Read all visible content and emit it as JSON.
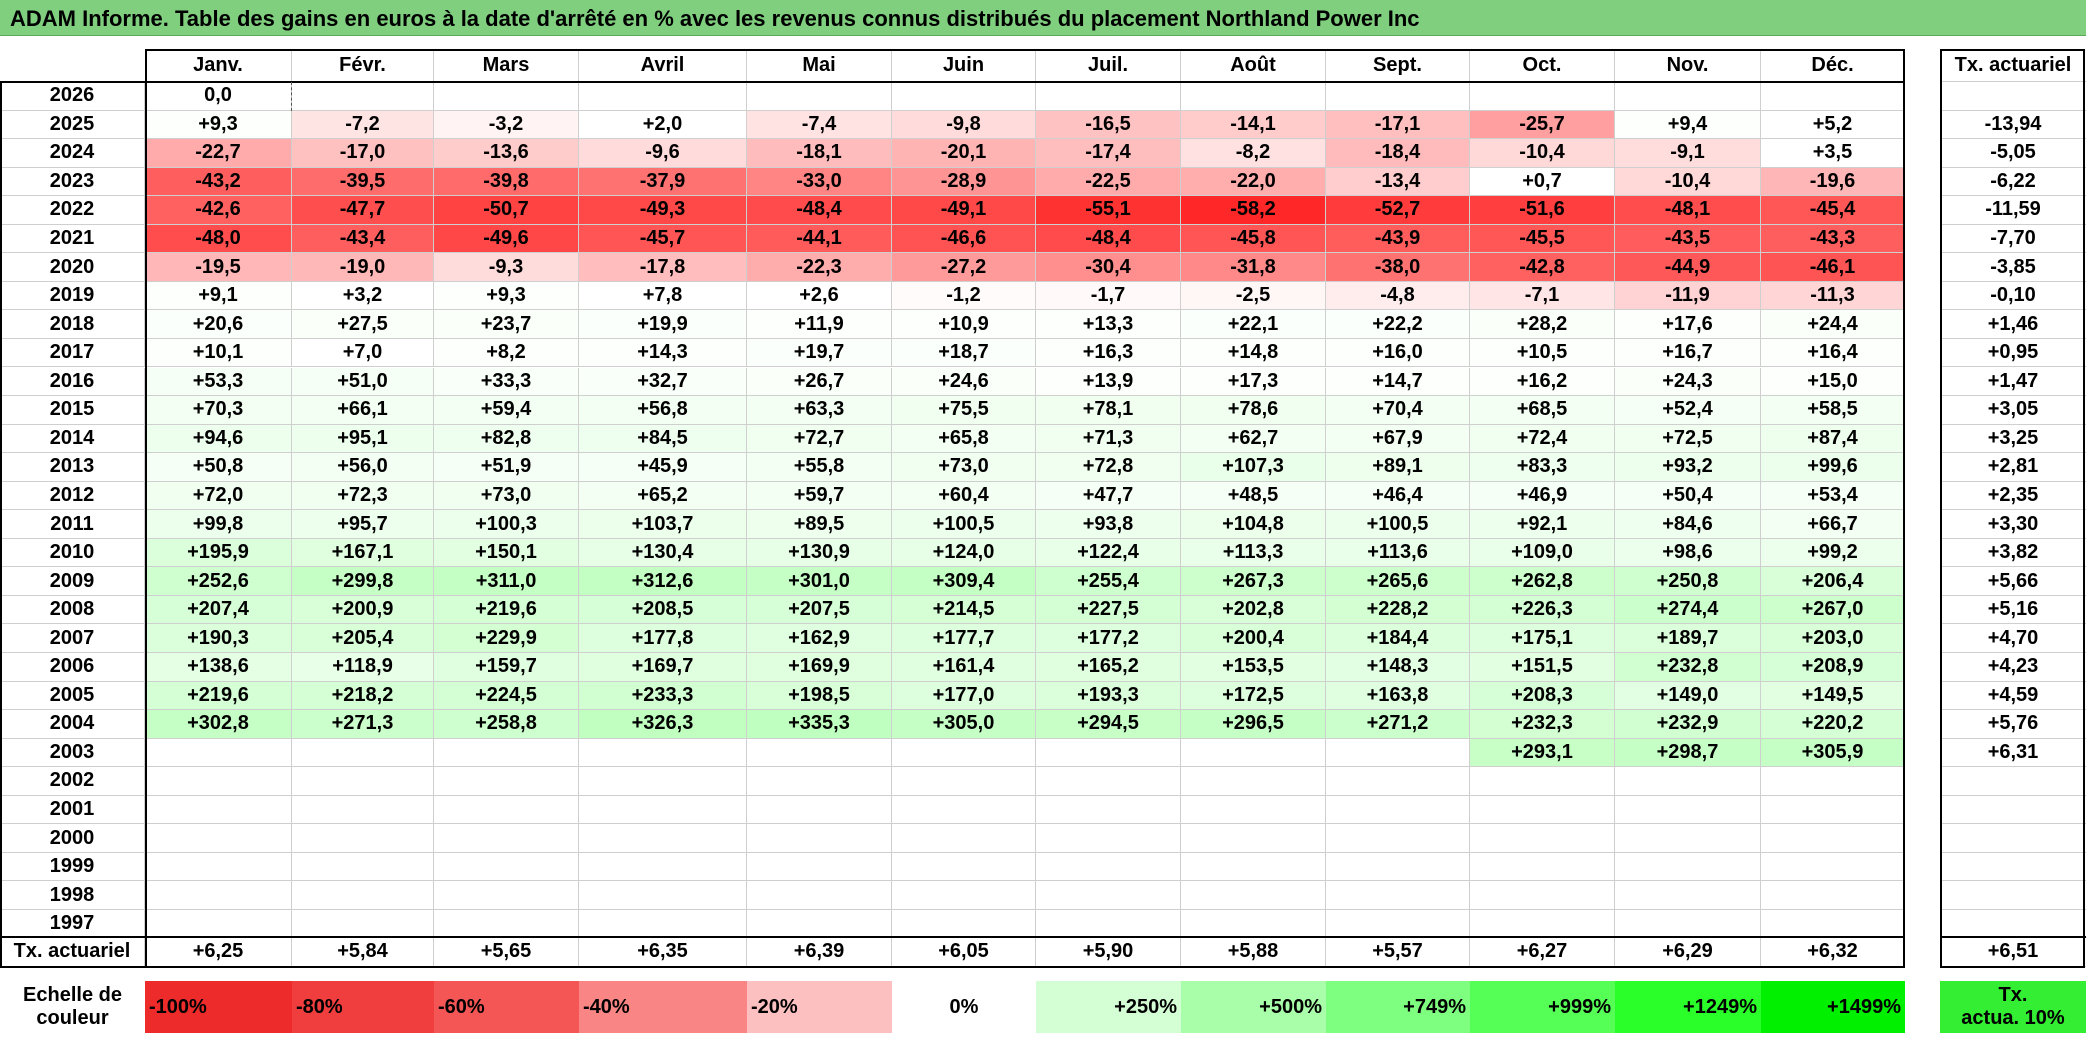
{
  "title": "ADAM Informe. Table des gains en euros à la date d'arrêté en % avec les revenus connus distribués du placement Northland Power Inc",
  "months": [
    "Janv.",
    "Févr.",
    "Mars",
    "Avril",
    "Mai",
    "Juin",
    "Juil.",
    "Août",
    "Sept.",
    "Oct.",
    "Nov.",
    "Déc."
  ],
  "tx_header": "Tx. actuariel",
  "rows": [
    {
      "year": "2026",
      "values": [
        "0,0",
        "",
        "",
        "",
        "",
        "",
        "",
        "",
        "",
        "",
        "",
        ""
      ],
      "tx": ""
    },
    {
      "year": "2025",
      "values": [
        "+9,3",
        "-7,2",
        "-3,2",
        "+2,0",
        "-7,4",
        "-9,8",
        "-16,5",
        "-14,1",
        "-17,1",
        "-25,7",
        "+9,4",
        "+5,2"
      ],
      "tx": "-13,94"
    },
    {
      "year": "2024",
      "values": [
        "-22,7",
        "-17,0",
        "-13,6",
        "-9,6",
        "-18,1",
        "-20,1",
        "-17,4",
        "-8,2",
        "-18,4",
        "-10,4",
        "-9,1",
        "+3,5"
      ],
      "tx": "-5,05"
    },
    {
      "year": "2023",
      "values": [
        "-43,2",
        "-39,5",
        "-39,8",
        "-37,9",
        "-33,0",
        "-28,9",
        "-22,5",
        "-22,0",
        "-13,4",
        "+0,7",
        "-10,4",
        "-19,6"
      ],
      "tx": "-6,22"
    },
    {
      "year": "2022",
      "values": [
        "-42,6",
        "-47,7",
        "-50,7",
        "-49,3",
        "-48,4",
        "-49,1",
        "-55,1",
        "-58,2",
        "-52,7",
        "-51,6",
        "-48,1",
        "-45,4"
      ],
      "tx": "-11,59"
    },
    {
      "year": "2021",
      "values": [
        "-48,0",
        "-43,4",
        "-49,6",
        "-45,7",
        "-44,1",
        "-46,6",
        "-48,4",
        "-45,8",
        "-43,9",
        "-45,5",
        "-43,5",
        "-43,3"
      ],
      "tx": "-7,70"
    },
    {
      "year": "2020",
      "values": [
        "-19,5",
        "-19,0",
        "-9,3",
        "-17,8",
        "-22,3",
        "-27,2",
        "-30,4",
        "-31,8",
        "-38,0",
        "-42,8",
        "-44,9",
        "-46,1"
      ],
      "tx": "-3,85"
    },
    {
      "year": "2019",
      "values": [
        "+9,1",
        "+3,2",
        "+9,3",
        "+7,8",
        "+2,6",
        "-1,2",
        "-1,7",
        "-2,5",
        "-4,8",
        "-7,1",
        "-11,9",
        "-11,3"
      ],
      "tx": "-0,10"
    },
    {
      "year": "2018",
      "values": [
        "+20,6",
        "+27,5",
        "+23,7",
        "+19,9",
        "+11,9",
        "+10,9",
        "+13,3",
        "+22,1",
        "+22,2",
        "+28,2",
        "+17,6",
        "+24,4"
      ],
      "tx": "+1,46"
    },
    {
      "year": "2017",
      "values": [
        "+10,1",
        "+7,0",
        "+8,2",
        "+14,3",
        "+19,7",
        "+18,7",
        "+16,3",
        "+14,8",
        "+16,0",
        "+10,5",
        "+16,7",
        "+16,4"
      ],
      "tx": "+0,95"
    },
    {
      "year": "2016",
      "values": [
        "+53,3",
        "+51,0",
        "+33,3",
        "+32,7",
        "+26,7",
        "+24,6",
        "+13,9",
        "+17,3",
        "+14,7",
        "+16,2",
        "+24,3",
        "+15,0"
      ],
      "tx": "+1,47"
    },
    {
      "year": "2015",
      "values": [
        "+70,3",
        "+66,1",
        "+59,4",
        "+56,8",
        "+63,3",
        "+75,5",
        "+78,1",
        "+78,6",
        "+70,4",
        "+68,5",
        "+52,4",
        "+58,5"
      ],
      "tx": "+3,05"
    },
    {
      "year": "2014",
      "values": [
        "+94,6",
        "+95,1",
        "+82,8",
        "+84,5",
        "+72,7",
        "+65,8",
        "+71,3",
        "+62,7",
        "+67,9",
        "+72,4",
        "+72,5",
        "+87,4"
      ],
      "tx": "+3,25"
    },
    {
      "year": "2013",
      "values": [
        "+50,8",
        "+56,0",
        "+51,9",
        "+45,9",
        "+55,8",
        "+73,0",
        "+72,8",
        "+107,3",
        "+89,1",
        "+83,3",
        "+93,2",
        "+99,6"
      ],
      "tx": "+2,81"
    },
    {
      "year": "2012",
      "values": [
        "+72,0",
        "+72,3",
        "+73,0",
        "+65,2",
        "+59,7",
        "+60,4",
        "+47,7",
        "+48,5",
        "+46,4",
        "+46,9",
        "+50,4",
        "+53,4"
      ],
      "tx": "+2,35"
    },
    {
      "year": "2011",
      "values": [
        "+99,8",
        "+95,7",
        "+100,3",
        "+103,7",
        "+89,5",
        "+100,5",
        "+93,8",
        "+104,8",
        "+100,5",
        "+92,1",
        "+84,6",
        "+66,7"
      ],
      "tx": "+3,30"
    },
    {
      "year": "2010",
      "values": [
        "+195,9",
        "+167,1",
        "+150,1",
        "+130,4",
        "+130,9",
        "+124,0",
        "+122,4",
        "+113,3",
        "+113,6",
        "+109,0",
        "+98,6",
        "+99,2"
      ],
      "tx": "+3,82"
    },
    {
      "year": "2009",
      "values": [
        "+252,6",
        "+299,8",
        "+311,0",
        "+312,6",
        "+301,0",
        "+309,4",
        "+255,4",
        "+267,3",
        "+265,6",
        "+262,8",
        "+250,8",
        "+206,4"
      ],
      "tx": "+5,66"
    },
    {
      "year": "2008",
      "values": [
        "+207,4",
        "+200,9",
        "+219,6",
        "+208,5",
        "+207,5",
        "+214,5",
        "+227,5",
        "+202,8",
        "+228,2",
        "+226,3",
        "+274,4",
        "+267,0"
      ],
      "tx": "+5,16"
    },
    {
      "year": "2007",
      "values": [
        "+190,3",
        "+205,4",
        "+229,9",
        "+177,8",
        "+162,9",
        "+177,7",
        "+177,2",
        "+200,4",
        "+184,4",
        "+175,1",
        "+189,7",
        "+203,0"
      ],
      "tx": "+4,70"
    },
    {
      "year": "2006",
      "values": [
        "+138,6",
        "+118,9",
        "+159,7",
        "+169,7",
        "+169,9",
        "+161,4",
        "+165,2",
        "+153,5",
        "+148,3",
        "+151,5",
        "+232,8",
        "+208,9"
      ],
      "tx": "+4,23"
    },
    {
      "year": "2005",
      "values": [
        "+219,6",
        "+218,2",
        "+224,5",
        "+233,3",
        "+198,5",
        "+177,0",
        "+193,3",
        "+172,5",
        "+163,8",
        "+208,3",
        "+149,0",
        "+149,5"
      ],
      "tx": "+4,59"
    },
    {
      "year": "2004",
      "values": [
        "+302,8",
        "+271,3",
        "+258,8",
        "+326,3",
        "+335,3",
        "+305,0",
        "+294,5",
        "+296,5",
        "+271,2",
        "+232,3",
        "+232,9",
        "+220,2"
      ],
      "tx": "+5,76"
    },
    {
      "year": "2003",
      "values": [
        "",
        "",
        "",
        "",
        "",
        "",
        "",
        "",
        "",
        "+293,1",
        "+298,7",
        "+305,9"
      ],
      "tx": "+6,31"
    },
    {
      "year": "2002",
      "values": [
        "",
        "",
        "",
        "",
        "",
        "",
        "",
        "",
        "",
        "",
        "",
        ""
      ],
      "tx": ""
    },
    {
      "year": "2001",
      "values": [
        "",
        "",
        "",
        "",
        "",
        "",
        "",
        "",
        "",
        "",
        "",
        ""
      ],
      "tx": ""
    },
    {
      "year": "2000",
      "values": [
        "",
        "",
        "",
        "",
        "",
        "",
        "",
        "",
        "",
        "",
        "",
        ""
      ],
      "tx": ""
    },
    {
      "year": "1999",
      "values": [
        "",
        "",
        "",
        "",
        "",
        "",
        "",
        "",
        "",
        "",
        "",
        ""
      ],
      "tx": ""
    },
    {
      "year": "1998",
      "values": [
        "",
        "",
        "",
        "",
        "",
        "",
        "",
        "",
        "",
        "",
        "",
        ""
      ],
      "tx": ""
    },
    {
      "year": "1997",
      "values": [
        "",
        "",
        "",
        "",
        "",
        "",
        "",
        "",
        "",
        "",
        "",
        ""
      ],
      "tx": ""
    }
  ],
  "footer": {
    "label": "Tx. actuariel",
    "values": [
      "+6,25",
      "+5,84",
      "+5,65",
      "+6,35",
      "+6,39",
      "+6,05",
      "+5,90",
      "+5,88",
      "+5,57",
      "+6,27",
      "+6,29",
      "+6,32"
    ],
    "tx": "+6,51"
  },
  "legend": {
    "label_line1": "Echelle de",
    "label_line2": "couleur",
    "items": [
      {
        "text": "-100%",
        "color": "#ee2b2b",
        "align": "left"
      },
      {
        "text": "-80%",
        "color": "#f03e3e",
        "align": "left"
      },
      {
        "text": "-60%",
        "color": "#f45555",
        "align": "left"
      },
      {
        "text": "-40%",
        "color": "#f98585",
        "align": "left"
      },
      {
        "text": "-20%",
        "color": "#fcc0c0",
        "align": "left"
      },
      {
        "text": "0%",
        "color": "#ffffff",
        "align": "center"
      },
      {
        "text": "+250%",
        "color": "#d4ffd4",
        "align": "right"
      },
      {
        "text": "+500%",
        "color": "#a9ffa9",
        "align": "right"
      },
      {
        "text": "+749%",
        "color": "#7fff7f",
        "align": "right"
      },
      {
        "text": "+999%",
        "color": "#55ff55",
        "align": "right"
      },
      {
        "text": "+1249%",
        "color": "#2aff2a",
        "align": "right"
      },
      {
        "text": "+1499%",
        "color": "#00f000",
        "align": "right"
      }
    ],
    "tx_line1": "Tx.",
    "tx_line2": "actua. 10%",
    "tx_color": "#33ee33"
  },
  "colors": {
    "title_bg": "#7fcf7f",
    "negative_max": "#ff2020",
    "positive_max": "#aaffaa"
  }
}
